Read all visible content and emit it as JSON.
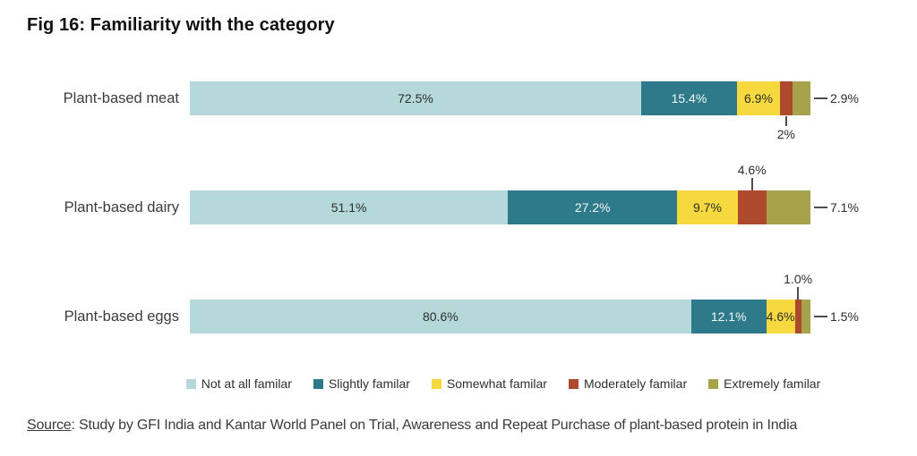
{
  "title": "Fig 16: Familiarity with the category",
  "source": {
    "label": "Source",
    "rest": ": Study by GFI India and Kantar World Panel on Trial, Awareness and Repeat Purchase of plant-based protein in India"
  },
  "legend": [
    {
      "name": "Not at all familar",
      "color": "#b5d8da"
    },
    {
      "name": "Slightly familar",
      "color": "#2f7a8a"
    },
    {
      "name": "Somewhat familar",
      "color": "#f6d93e"
    },
    {
      "name": "Moderately familar",
      "color": "#ad4a2e"
    },
    {
      "name": "Extremely familar",
      "color": "#a7a34a"
    }
  ],
  "chart_data": {
    "type": "bar",
    "orientation": "horizontal",
    "stacked": true,
    "unit": "%",
    "title": "Fig 16: Familiarity with the category",
    "categories": [
      "Plant-based meat",
      "Plant-based dairy",
      "Plant-based eggs"
    ],
    "series_names": [
      "Not at all familar",
      "Slightly familar",
      "Somewhat familar",
      "Moderately familar",
      "Extremely familar"
    ],
    "value_range": [
      0,
      100
    ],
    "legend_position": "bottom",
    "grid": false,
    "rows": [
      {
        "category": "Plant-based meat",
        "segments": [
          {
            "series": "Not at all familar",
            "value": 72.5,
            "label": "72.5%",
            "label_pos": "inside",
            "text": "dark"
          },
          {
            "series": "Slightly familar",
            "value": 15.4,
            "label": "15.4%",
            "label_pos": "inside",
            "text": "light"
          },
          {
            "series": "Somewhat familar",
            "value": 6.9,
            "label": "6.9%",
            "label_pos": "inside",
            "text": "dark"
          },
          {
            "series": "Moderately familar",
            "value": 2,
            "label": "2%",
            "label_pos": "below"
          },
          {
            "series": "Extremely familar",
            "value": 2.9,
            "label": "2.9%",
            "label_pos": "right"
          }
        ]
      },
      {
        "category": "Plant-based dairy",
        "segments": [
          {
            "series": "Not at all familar",
            "value": 51.1,
            "label": "51.1%",
            "label_pos": "inside",
            "text": "dark"
          },
          {
            "series": "Slightly familar",
            "value": 27.2,
            "label": "27.2%",
            "label_pos": "inside",
            "text": "light"
          },
          {
            "series": "Somewhat familar",
            "value": 9.7,
            "label": "9.7%",
            "label_pos": "inside",
            "text": "dark"
          },
          {
            "series": "Moderately familar",
            "value": 4.6,
            "label": "4.6%",
            "label_pos": "above"
          },
          {
            "series": "Extremely familar",
            "value": 7.1,
            "label": "7.1%",
            "label_pos": "right"
          }
        ]
      },
      {
        "category": "Plant-based eggs",
        "segments": [
          {
            "series": "Not at all familar",
            "value": 80.6,
            "label": "80.6%",
            "label_pos": "inside",
            "text": "dark"
          },
          {
            "series": "Slightly familar",
            "value": 12.1,
            "label": "12.1%",
            "label_pos": "inside",
            "text": "light"
          },
          {
            "series": "Somewhat familar",
            "value": 4.6,
            "label": "4.6%",
            "label_pos": "inside",
            "text": "dark"
          },
          {
            "series": "Moderately familar",
            "value": 1.0,
            "label": "1.0%",
            "label_pos": "above"
          },
          {
            "series": "Extremely familar",
            "value": 1.5,
            "label": "1.5%",
            "label_pos": "right"
          }
        ]
      }
    ]
  }
}
